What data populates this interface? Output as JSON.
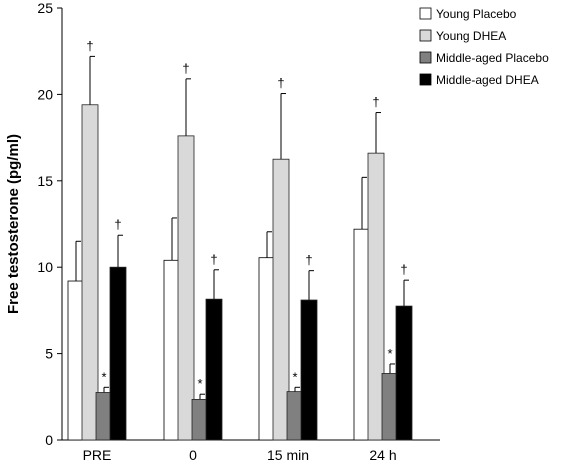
{
  "chart_data": {
    "type": "bar",
    "title": "",
    "xlabel": "",
    "ylabel": "Free testosterone (pg/ml)",
    "ylim": [
      0,
      25
    ],
    "yticks": [
      0,
      5,
      10,
      15,
      20,
      25
    ],
    "grid": false,
    "legend_position": "top-right",
    "categories": [
      "PRE",
      "0",
      "15 min",
      "24 h"
    ],
    "series": [
      {
        "name": "Young Placebo",
        "color": "#ffffff",
        "values": [
          9.2,
          10.4,
          10.55,
          12.2
        ],
        "errors": [
          2.3,
          2.45,
          1.5,
          3.0
        ],
        "markers": [
          "",
          "",
          "",
          ""
        ]
      },
      {
        "name": "Young DHEA",
        "color": "#d9d9d9",
        "values": [
          19.4,
          17.6,
          16.25,
          16.6
        ],
        "errors": [
          2.8,
          3.3,
          3.8,
          2.35
        ],
        "markers": [
          "†",
          "†",
          "†",
          "†"
        ]
      },
      {
        "name": "Middle-aged Placebo",
        "color": "#808080",
        "values": [
          2.75,
          2.35,
          2.8,
          3.85
        ],
        "errors": [
          0.3,
          0.3,
          0.25,
          0.55
        ],
        "markers": [
          "*",
          "*",
          "*",
          "*"
        ]
      },
      {
        "name": "Middle-aged DHEA",
        "color": "#000000",
        "values": [
          10.0,
          8.15,
          8.1,
          7.75
        ],
        "errors": [
          1.85,
          1.7,
          1.7,
          1.5
        ],
        "markers": [
          "†",
          "†",
          "†",
          "†"
        ]
      }
    ]
  }
}
